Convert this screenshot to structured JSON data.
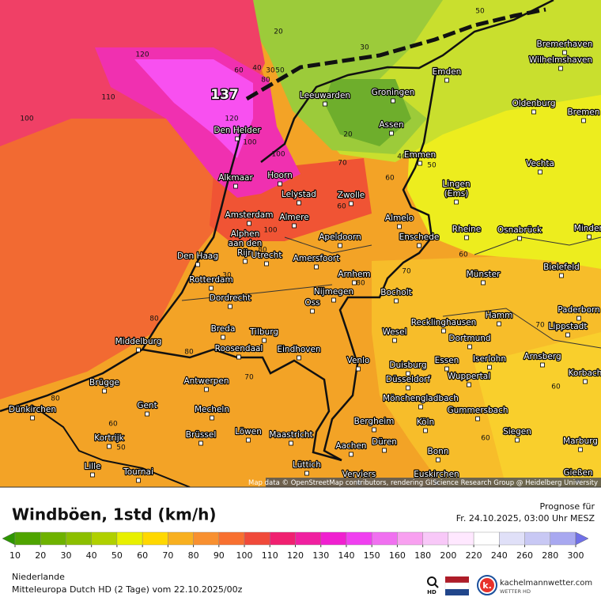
{
  "map": {
    "cities": [
      "Bremerhaven",
      "Wilhelmshaven",
      "Emden",
      "Leeuwarden",
      "Groningen",
      "Oldenburg",
      "Bremen",
      "Den Helder",
      "Assen",
      "Emmen",
      "Vechta",
      "Alkmaar",
      "Hoorn",
      "Lelystad",
      "Zwolle",
      [
        "Lingen",
        "(Ems)"
      ],
      "Amsterdam",
      "Almere",
      "Almelo",
      "Rheine",
      "Osnabrück",
      "Minden",
      [
        "Alphen",
        "aan den",
        "Rijn"
      ],
      "Apeldoorn",
      "Enschede",
      "Utrecht",
      "Amersfoort",
      "Den Haag",
      "Bielefeld",
      "Rotterdam",
      "Arnhem",
      "Münster",
      "Nijmegen",
      "Bocholt",
      "Dordrecht",
      "Oss",
      "Paderborn",
      "Hamm",
      "Recklinghausen",
      "Lippstadt",
      "Breda",
      "Tilburg",
      "Wesel",
      "Middelburg",
      "Dortmund",
      "Roosendaal",
      "Eindhoven",
      "Arnsberg",
      "Venlo",
      "Essen",
      "Iserlohn",
      "Duisburg",
      "Korbach",
      "Wuppertal",
      "Antwerpen",
      "Brügge",
      "Düsseldorf",
      "Mönchengladbach",
      "Dünkirchen",
      "Gent",
      "Mecheln",
      "Gummersbach",
      "Bergheim",
      "Köln",
      "Siegen",
      "Brüssel",
      "Löwen",
      "Maastricht",
      "Düren",
      "Marburg",
      "Kortrijk",
      "Aachen",
      "Bonn",
      "Lüttich",
      "Lille",
      "Tournai",
      "Gießen",
      "Verviers",
      "Euskirchen"
    ],
    "contour_labels": [
      20,
      50,
      30,
      60,
      40,
      30,
      50,
      80,
      120,
      110,
      100,
      137,
      120,
      100,
      100,
      70,
      20,
      40,
      50,
      60,
      60,
      100,
      80,
      60,
      70,
      80,
      30,
      80,
      70,
      80,
      70,
      80,
      60,
      50,
      60,
      60
    ],
    "attribution": "Map data © OpenStreetMap contributors, rendering GIScience Research Group @ Heidelberg University"
  },
  "legend": {
    "title": "Windböen, 1std (km/h)",
    "ticks": [
      10,
      20,
      30,
      40,
      50,
      60,
      70,
      80,
      90,
      100,
      110,
      120,
      130,
      140,
      150,
      160,
      180,
      200,
      220,
      240,
      260,
      280,
      300
    ],
    "colors": [
      "#2e9600",
      "#4fa400",
      "#6eb200",
      "#8cbf00",
      "#b0d000",
      "#e8f000",
      "#ffd800",
      "#f8b020",
      "#f89030",
      "#f87030",
      "#f04a3a",
      "#f02070",
      "#f020a0",
      "#f020d0",
      "#f040f0",
      "#f070f0",
      "#f8a0f0",
      "#f8c8f8",
      "#ffe8ff",
      "#ffffff",
      "#e0e0f8",
      "#c8c8f4",
      "#a8a8f0",
      "#7070e8"
    ]
  },
  "forecast": {
    "label": "Prognose für",
    "time": "Fr. 24.10.2025, 03:00 Uhr MESZ"
  },
  "footer": {
    "region": "Niederlande",
    "model": "Mitteleuropa Dutch HD (2 Tage) vom 22.10.2025/00z",
    "hd_icon": "HD",
    "logo_mark": "k.",
    "site": "kachelmannwetter.com",
    "brand": "WETTER HD"
  }
}
